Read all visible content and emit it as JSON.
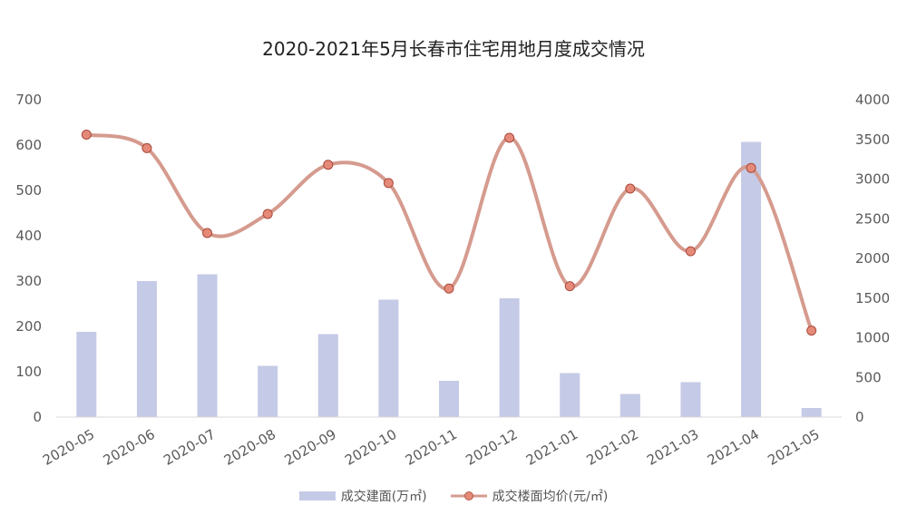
{
  "chart_data": {
    "type": "bar",
    "title": "2020-2021年5月长春市住宅用地月度成交情况",
    "categories": [
      "2020-05",
      "2020-06",
      "2020-07",
      "2020-08",
      "2020-09",
      "2020-10",
      "2020-11",
      "2020-12",
      "2021-01",
      "2021-02",
      "2021-03",
      "2021-04",
      "2021-05"
    ],
    "series": [
      {
        "name": "成交建面(万㎡)",
        "type": "bar",
        "axis": "left",
        "color": "#c5cae6",
        "values": [
          188,
          300,
          315,
          113,
          183,
          259,
          80,
          262,
          97,
          51,
          77,
          607,
          20
        ]
      },
      {
        "name": "成交楼面均价(元/㎡)",
        "type": "line",
        "smooth": true,
        "axis": "right",
        "color": "#d59b8e",
        "marker_color": "#e58a79",
        "values": [
          3560,
          3390,
          2320,
          2560,
          3180,
          2950,
          1620,
          3520,
          1650,
          2880,
          2090,
          3140,
          1090
        ]
      }
    ],
    "y_left": {
      "lim": [
        0,
        700
      ],
      "ticks": [
        "0",
        "100",
        "200",
        "300",
        "400",
        "500",
        "600",
        "700"
      ]
    },
    "y_right": {
      "lim": [
        0,
        4000
      ],
      "ticks": [
        "0",
        "500",
        "1000",
        "1500",
        "2000",
        "2500",
        "3000",
        "3500",
        "4000"
      ]
    },
    "grid": false,
    "legend_position": "bottom"
  }
}
